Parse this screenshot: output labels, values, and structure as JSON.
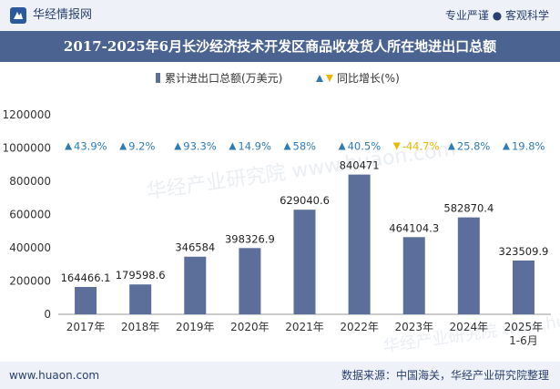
{
  "header": {
    "brand_name": "华经情报网",
    "slogan": "专业严谨 ● 客观科学",
    "title": "2017-2025年6月长沙经济技术开发区商品收发货人所在地进出口总额"
  },
  "footer": {
    "url": "www.huaon.com",
    "source": "数据来源：中国海关，华经产业研究院整理"
  },
  "watermark": "华经产业研究院 www.huaon.com",
  "colors": {
    "bar": "#5b6f9a",
    "up": "#2f7cb3",
    "down": "#e6b800",
    "axis": "#555555",
    "title_bg": "#4a6391",
    "band_bg": "#eef2f8"
  },
  "chart_data": {
    "type": "bar",
    "title": "2017-2025年6月长沙经济技术开发区商品收发货人所在地进出口总额",
    "xlabel": "",
    "ylabel": "",
    "ylim": [
      0,
      1200000
    ],
    "yticks": [
      0,
      200000,
      400000,
      600000,
      800000,
      1000000,
      1200000
    ],
    "categories": [
      "2017年",
      "2018年",
      "2019年",
      "2020年",
      "2021年",
      "2022年",
      "2023年",
      "2024年",
      "2025年\n1-6月"
    ],
    "series": [
      {
        "name": "累计进出口总额(万美元)",
        "values": [
          164466.1,
          179598.6,
          346584,
          398326.9,
          629040.6,
          840471,
          464104.3,
          582870.4,
          323509.9
        ],
        "value_labels": [
          "164466.1",
          "179598.6",
          "346584",
          "398326.9",
          "629040.6",
          "840471",
          "464104.3",
          "582870.4",
          "323509.9"
        ]
      },
      {
        "name": "同比增长(%)",
        "values": [
          43.9,
          9.2,
          93.3,
          14.9,
          58,
          40.5,
          -44.7,
          25.8,
          19.8
        ],
        "value_labels": [
          "43.9%",
          "9.2%",
          "93.3%",
          "14.9%",
          "58%",
          "40.5%",
          "-44.7%",
          "25.8%",
          "19.8%"
        ]
      }
    ],
    "legend": {
      "position": "top-center",
      "bar_label": "累计进出口总额(万美元)",
      "growth_label": "同比增长(%)"
    }
  }
}
